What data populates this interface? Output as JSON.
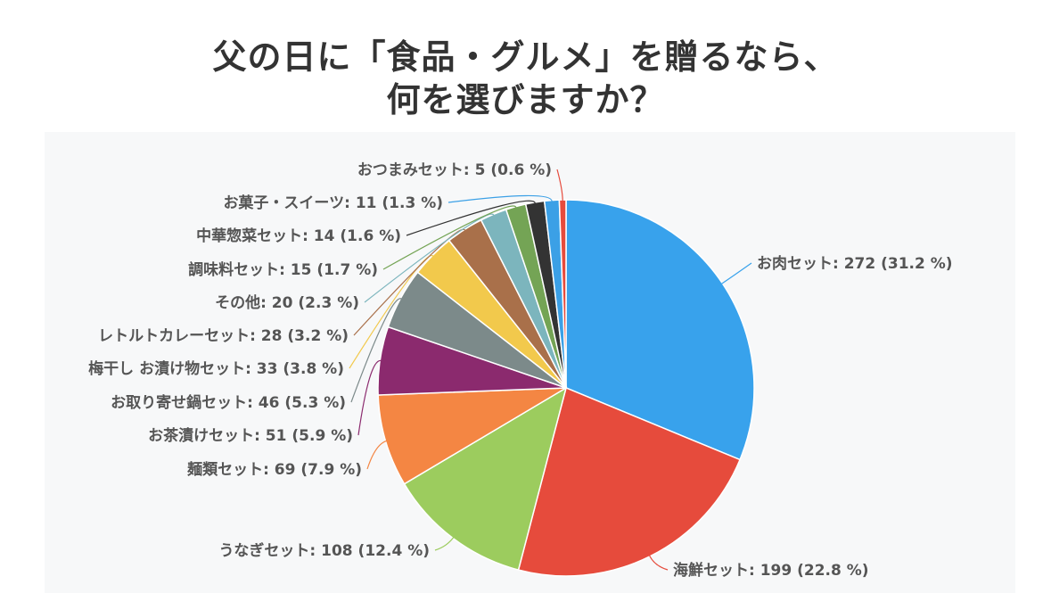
{
  "chart_data": {
    "type": "pie",
    "title_lines": [
      "父の日に「食品・グルメ」を贈るなら、",
      "何を選びますか？"
    ],
    "slices": [
      {
        "label": "お肉セット",
        "value": 272,
        "percent": "31.2 %",
        "color": "#38a2ec"
      },
      {
        "label": "海鮮セット",
        "value": 199,
        "percent": "22.8 %",
        "color": "#e64b3c"
      },
      {
        "label": "うなぎセット",
        "value": 108,
        "percent": "12.4 %",
        "color": "#9ccc5e"
      },
      {
        "label": "麺類セット",
        "value": 69,
        "percent": "7.9 %",
        "color": "#f48643"
      },
      {
        "label": "お茶漬けセット",
        "value": 51,
        "percent": "5.9 %",
        "color": "#8b2a6e"
      },
      {
        "label": "お取り寄せ鍋セット",
        "value": 46,
        "percent": "5.3 %",
        "color": "#7c8a8a"
      },
      {
        "label": "梅干し お漬け物セット",
        "value": 33,
        "percent": "3.8 %",
        "color": "#f2c94c"
      },
      {
        "label": "レトルトカレーセット",
        "value": 28,
        "percent": "3.2 %",
        "color": "#a9704a"
      },
      {
        "label": "その他",
        "value": 20,
        "percent": "2.3 %",
        "color": "#7cb5bd"
      },
      {
        "label": "調味料セット",
        "value": 15,
        "percent": "1.7 %",
        "color": "#74a455"
      },
      {
        "label": "中華惣菜セット",
        "value": 14,
        "percent": "1.6 %",
        "color": "#333333"
      },
      {
        "label": "お菓子・スイーツ",
        "value": 11,
        "percent": "1.3 %",
        "color": "#3ba0e6"
      },
      {
        "label": "おつまみセット",
        "value": 5,
        "percent": "0.6 %",
        "color": "#e64b3c"
      }
    ],
    "legend": "none"
  }
}
